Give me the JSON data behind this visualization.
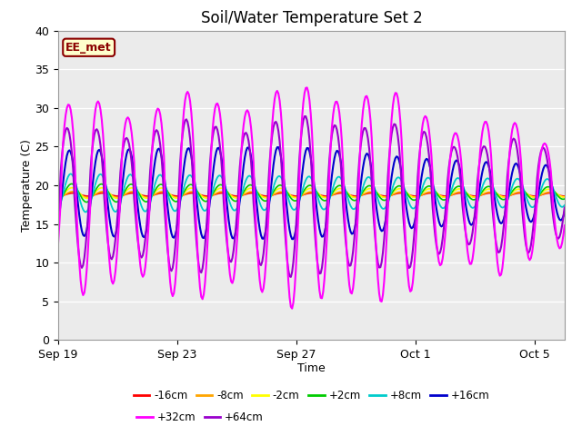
{
  "title": "Soil/Water Temperature Set 2",
  "xlabel": "Time",
  "ylabel": "Temperature (C)",
  "ylim": [
    0,
    40
  ],
  "yticks": [
    0,
    5,
    10,
    15,
    20,
    25,
    30,
    35,
    40
  ],
  "xtick_labels": [
    "Sep 19",
    "Sep 23",
    "Sep 27",
    "Oct 1",
    "Oct 5"
  ],
  "xtick_positions": [
    0,
    4,
    8,
    12,
    16
  ],
  "annotation_text": "EE_met",
  "annotation_color": "#8B0000",
  "annotation_bg": "#FFFFCC",
  "bg_color": "#EBEBEB",
  "colors": {
    "-16cm": "#FF0000",
    "-8cm": "#FFA500",
    "-2cm": "#FFFF00",
    "+2cm": "#00CC00",
    "+8cm": "#00CCCC",
    "+16cm": "#0000CC",
    "+32cm": "#FF00FF",
    "+64cm": "#9900CC"
  },
  "legend_order": [
    "-16cm",
    "-8cm",
    "-2cm",
    "+2cm",
    "+8cm",
    "+16cm",
    "+32cm",
    "+64cm"
  ],
  "legend_ncol_row1": 6,
  "legend_ncol_row2": 2
}
